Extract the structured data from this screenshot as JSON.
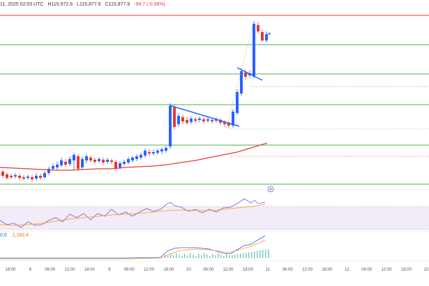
{
  "header": {
    "time": "11, 2025 02:03 UTC",
    "high": "H115,972.6",
    "low": "L115,877.6",
    "close": "C115,877.9",
    "change": "-94.7 (-0.08%)"
  },
  "indicator_labels": {
    "first": "0.6",
    "second": "1,183.4"
  },
  "time_axis": [
    "18:00",
    "8",
    "06:00",
    "12:00",
    "18:00",
    "9",
    "06:00",
    "12:00",
    "18:00",
    "10",
    "06:00",
    "12:00",
    "18:00",
    "11",
    "06:00",
    "12:00",
    "18:00",
    "12",
    "06:00",
    "12:00",
    "18:00",
    "13"
  ],
  "colors": {
    "up": "#2962ff",
    "down": "#e53935",
    "support": "#4caf50",
    "resistance": "#e53935",
    "ma": "#e53935",
    "rsi_band": "#ede7f6",
    "rsi_line": "#7e57c2"
  }
}
